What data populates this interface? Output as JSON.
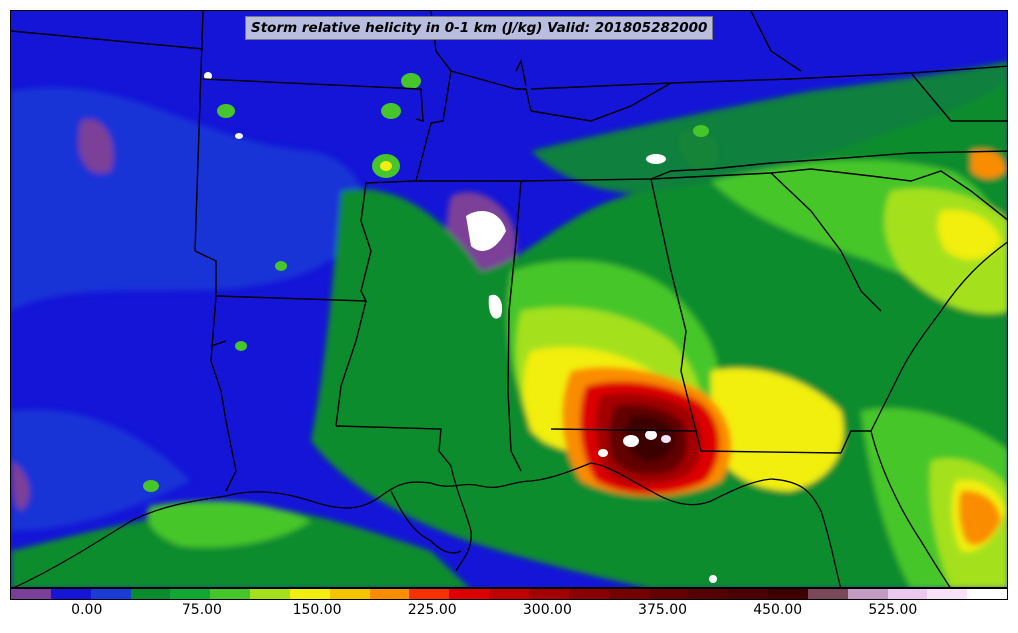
{
  "title": "Storm relative helicity in 0-1 km (J/kg) Valid: 201805282000",
  "map": {
    "type": "filled-contour-map",
    "variable": "Storm relative helicity in 0-1 km",
    "units": "J/kg",
    "valid_time": "201805282000",
    "region": "Southeastern United States and northern Gulf of Mexico",
    "boundaries": "state borders and coastlines in black",
    "maximum_area": "near the Florida Panhandle / Alabama coast"
  },
  "colorbar": {
    "orientation": "horizontal",
    "range": [
      -50,
      600
    ],
    "tick_labels": [
      "0.00",
      "75.00",
      "150.00",
      "225.00",
      "300.00",
      "375.00",
      "450.00",
      "525.00"
    ],
    "tick_values": [
      0,
      75,
      150,
      225,
      300,
      375,
      450,
      525
    ],
    "colors": [
      "#7b3f99",
      "#1515d8",
      "#1a3bd6",
      "#0a8c2e",
      "#12a635",
      "#46c62a",
      "#a4e11c",
      "#f2ee10",
      "#f5c400",
      "#fa8c00",
      "#f53000",
      "#dc0000",
      "#c00000",
      "#a30000",
      "#8a0000",
      "#740000",
      "#620000",
      "#550000",
      "#4a0000",
      "#3c0000",
      "#7a4858",
      "#c39ac4",
      "#ecc8ee",
      "#f8e2f8",
      "#ffffff"
    ]
  }
}
